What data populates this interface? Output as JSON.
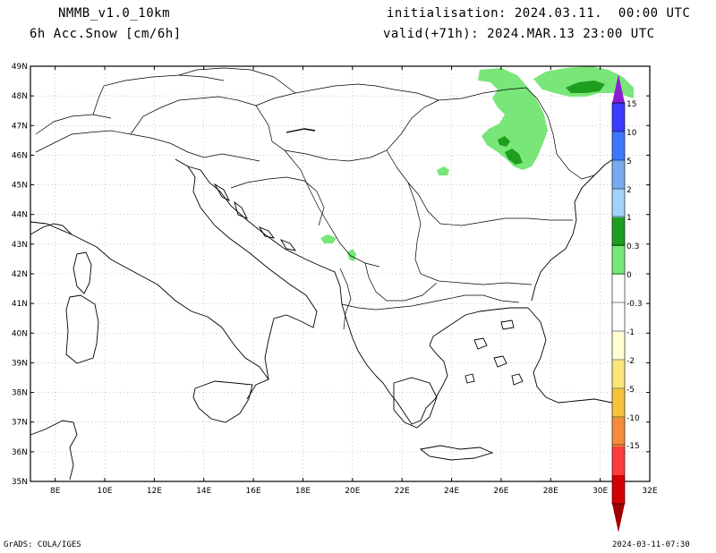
{
  "header": {
    "model": "NMMB_v1.0_10km",
    "field": "6h Acc.Snow [cm/6h]",
    "init": "initialisation: 2024.03.11.  00:00 UTC",
    "valid": "valid(+71h): 2024.MAR.13 23:00 UTC"
  },
  "footer": {
    "left": "GrADS: COLA/IGES",
    "right": "2024-03-11-07:30"
  },
  "map": {
    "lat_labels": [
      "49N",
      "48N",
      "47N",
      "46N",
      "45N",
      "44N",
      "43N",
      "42N",
      "41N",
      "40N",
      "39N",
      "38N",
      "37N",
      "36N",
      "35N"
    ],
    "lon_labels": [
      "8E",
      "10E",
      "12E",
      "14E",
      "16E",
      "18E",
      "20E",
      "22E",
      "24E",
      "26E",
      "28E",
      "30E",
      "32E"
    ]
  },
  "legend": {
    "labels": [
      "15",
      "10",
      "5",
      "2",
      "1",
      "0.3",
      "0",
      "-0.3",
      "-1",
      "-2",
      "-5",
      "-10",
      "-15"
    ],
    "colors": [
      "#3c3cff",
      "#3c78ff",
      "#78aaf0",
      "#a0d2fa",
      "#1e9e1e",
      "#78e678",
      "#ffffd2",
      "#fae678",
      "#f5c33c",
      "#f58c3c",
      "#fa3c3c",
      "#d20000",
      "#a00000"
    ]
  }
}
